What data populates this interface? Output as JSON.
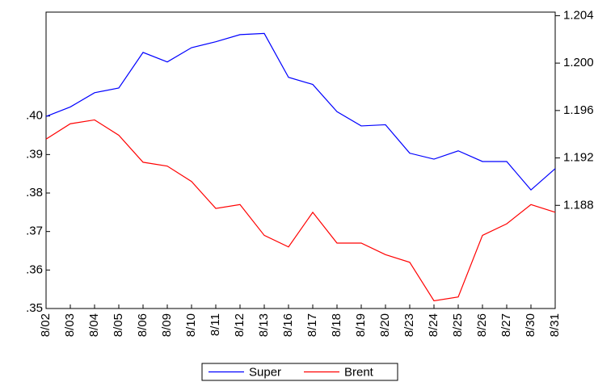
{
  "chart_data": {
    "type": "line",
    "categories": [
      "8/02",
      "8/03",
      "8/04",
      "8/05",
      "8/06",
      "8/09",
      "8/10",
      "8/11",
      "8/12",
      "8/13",
      "8/16",
      "8/17",
      "8/18",
      "8/19",
      "8/20",
      "8/23",
      "8/24",
      "8/25",
      "8/26",
      "8/27",
      "8/30",
      "8/31"
    ],
    "series": [
      {
        "name": "Super",
        "color": "#0000ff",
        "axis": "y2",
        "values": [
          1.1955,
          1.1963,
          1.1975,
          1.1979,
          1.2009,
          1.2001,
          1.2013,
          1.2018,
          1.2024,
          1.2025,
          1.1988,
          1.1982,
          1.1959,
          1.1947,
          1.1948,
          1.1924,
          1.1919,
          1.1926,
          1.1917,
          1.1917,
          1.1893,
          1.1911
        ]
      },
      {
        "name": "Brent",
        "color": "#ff0000",
        "values": [
          0.394,
          0.398,
          0.399,
          0.395,
          0.388,
          0.387,
          0.383,
          0.376,
          0.377,
          0.369,
          0.366,
          0.375,
          0.367,
          0.367,
          0.364,
          0.362,
          0.352,
          0.353,
          0.369,
          0.372,
          0.377,
          0.375
        ]
      }
    ],
    "ylim": [
      0.35,
      0.427
    ],
    "yticks": [
      {
        "value": 0.35,
        "label": ".35"
      },
      {
        "value": 0.36,
        "label": ".36"
      },
      {
        "value": 0.37,
        "label": ".37"
      },
      {
        "value": 0.38,
        "label": ".38"
      },
      {
        "value": 0.39,
        "label": ".39"
      },
      {
        "value": 0.4,
        "label": ".40"
      }
    ],
    "y2lim": [
      1.1793,
      1.2043
    ],
    "y2ticks": [
      1.188,
      1.192,
      1.196,
      {
        "value": 1.2,
        "label": "1.200"
      },
      1.204
    ],
    "legend": "bottom",
    "grid": false
  }
}
